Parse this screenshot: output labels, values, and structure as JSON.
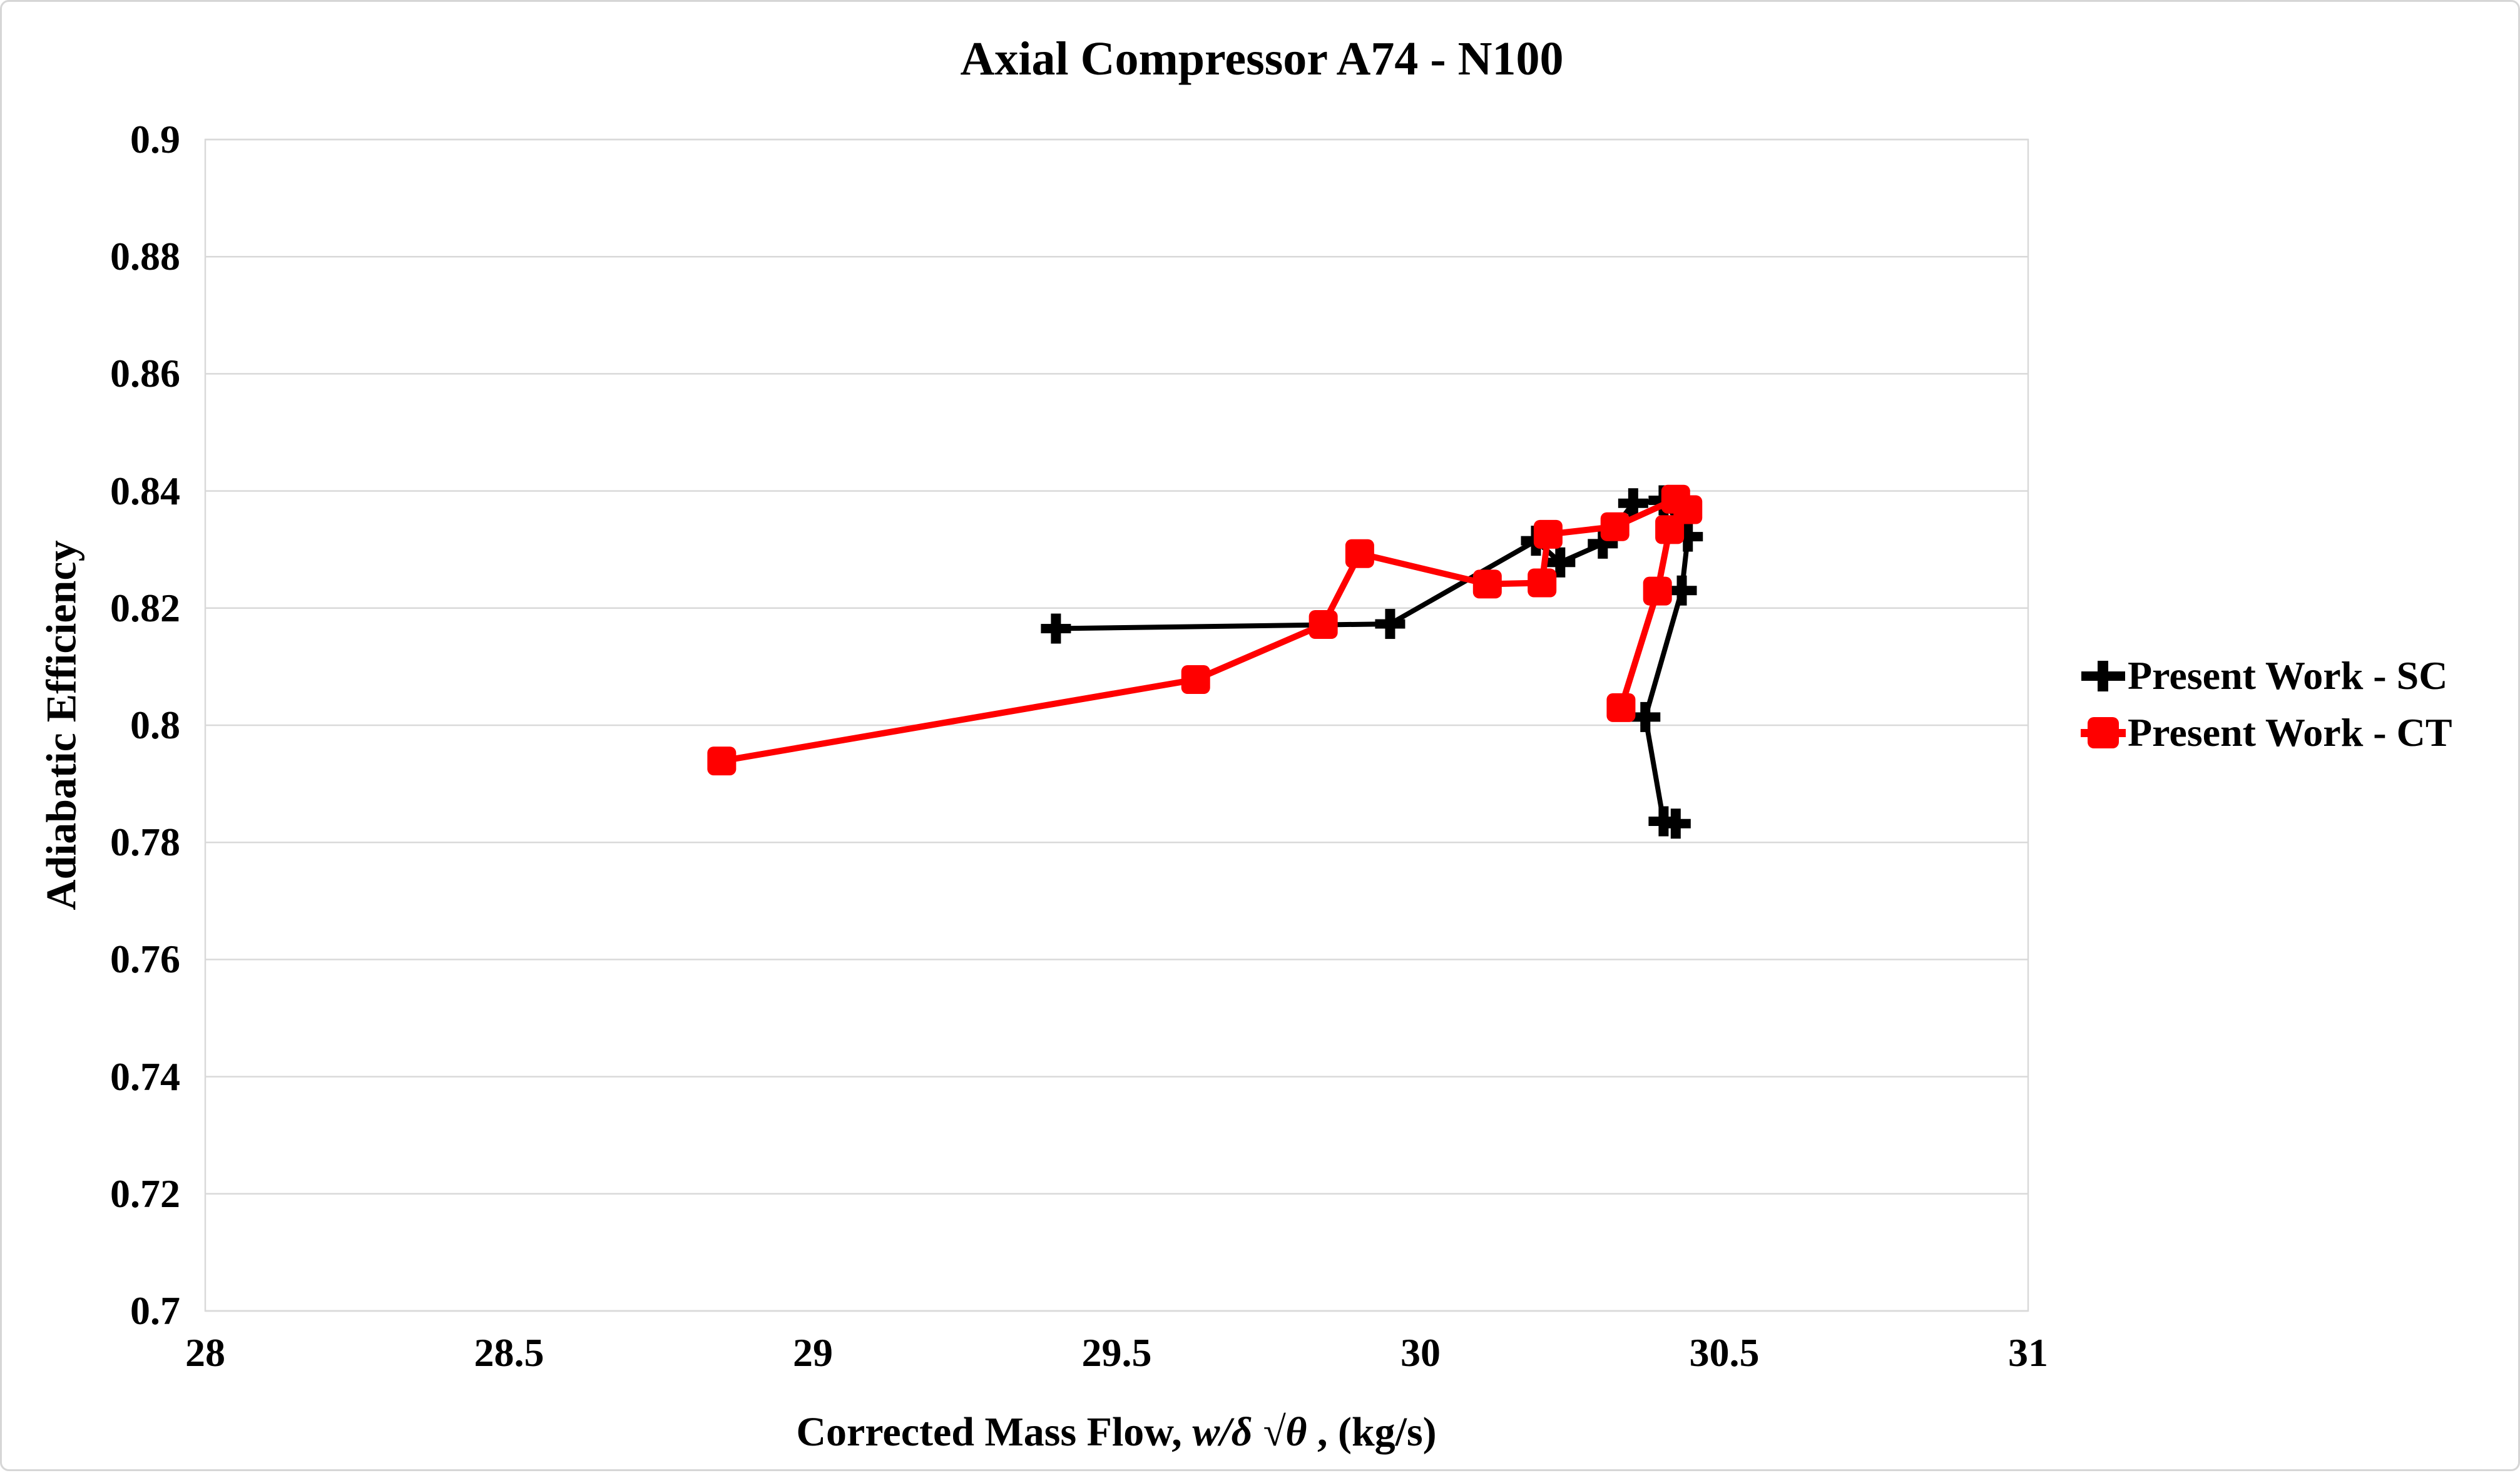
{
  "chart_data": {
    "type": "line",
    "title": "Axial Compressor A74 - N100",
    "xlabel": "Corrected Mass Flow, w/δ √θ , (kg/s)",
    "xlabel_parts": {
      "prefix": "Corrected Mass Flow, ",
      "italic": "w/δ √θ",
      "suffix": " , (kg/s)"
    },
    "ylabel": "Adiabatic Efficiency",
    "xlim": [
      28,
      31
    ],
    "ylim": [
      0.7,
      0.9
    ],
    "x_ticks": [
      "28",
      "28.5",
      "29",
      "29.5",
      "30",
      "30.5",
      "31"
    ],
    "y_ticks": [
      "0.7",
      "0.72",
      "0.74",
      "0.76",
      "0.78",
      "0.8",
      "0.82",
      "0.84",
      "0.86",
      "0.88",
      "0.9"
    ],
    "grid": "horizontal-only",
    "gridline_color": "#D9D9D9",
    "legend_position": "right-middle",
    "series": [
      {
        "name": "Present Work - SC",
        "color": "#000000",
        "marker": "plus",
        "points": [
          [
            29.4,
            0.8165
          ],
          [
            29.95,
            0.8173
          ],
          [
            30.19,
            0.8315
          ],
          [
            30.23,
            0.8278
          ],
          [
            30.3,
            0.831
          ],
          [
            30.35,
            0.8379
          ],
          [
            30.4,
            0.8384
          ],
          [
            30.44,
            0.8322
          ],
          [
            30.43,
            0.823
          ],
          [
            30.37,
            0.8014
          ],
          [
            30.4,
            0.7836
          ],
          [
            30.42,
            0.7832
          ]
        ]
      },
      {
        "name": "Present Work - CT",
        "color": "#FF0000",
        "marker": "square",
        "points": [
          [
            28.85,
            0.7939
          ],
          [
            29.63,
            0.8078
          ],
          [
            29.84,
            0.8172
          ],
          [
            29.9,
            0.8293
          ],
          [
            30.11,
            0.8241
          ],
          [
            30.2,
            0.8243
          ],
          [
            30.21,
            0.8326
          ],
          [
            30.32,
            0.8339
          ],
          [
            30.42,
            0.8386
          ],
          [
            30.44,
            0.8368
          ],
          [
            30.41,
            0.8334
          ],
          [
            30.39,
            0.8229
          ],
          [
            30.33,
            0.803
          ]
        ]
      }
    ]
  }
}
